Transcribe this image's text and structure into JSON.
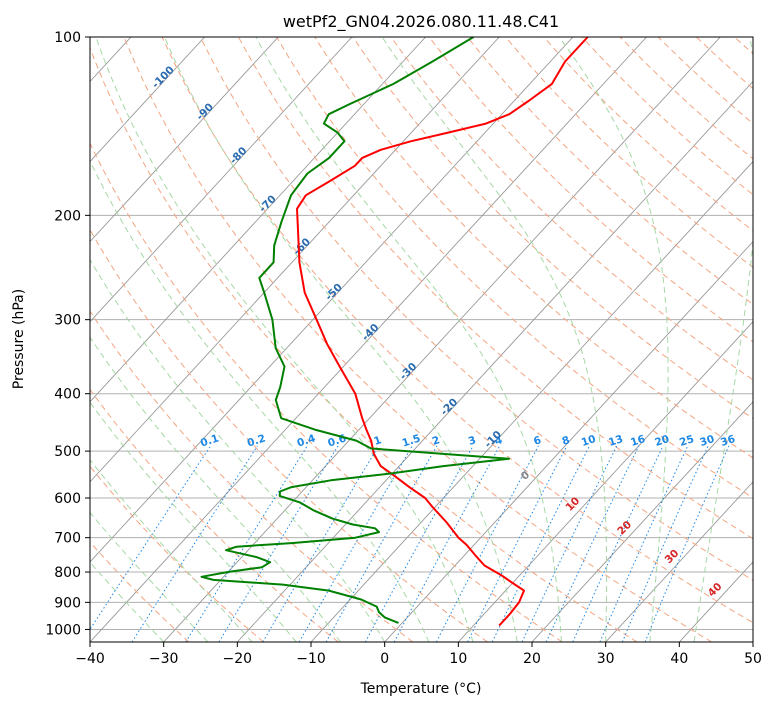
{
  "chart_data": {
    "type": "line",
    "title": "wetPf2_GN04.2026.080.11.48.C41",
    "xlabel": "Temperature (°C)",
    "ylabel": "Pressure (hPa)",
    "xlim": [
      -40,
      50
    ],
    "ylim": [
      1050,
      100
    ],
    "yscale": "log",
    "skew": true,
    "grid": true,
    "x_ticks": [
      "−40",
      "−30",
      "−20",
      "−10",
      "0",
      "10",
      "20",
      "30",
      "40",
      "50"
    ],
    "y_ticks": [
      "100",
      "200",
      "300",
      "400",
      "500",
      "600",
      "700",
      "800",
      "900",
      "1000"
    ],
    "colors": {
      "temperature": "#ff0000",
      "dewpoint": "#008000",
      "dry_adiabat": "#f4a582",
      "moist_adiabat": "#a6d8a6",
      "mixing_ratio": "#1e88e5",
      "isotherm": "#999999",
      "isotherm_label_zero": "#888888",
      "isotherm_label": "#d62728",
      "adiabat_label": "#2b6cb0"
    },
    "series": [
      {
        "color": "#ff0000",
        "points": [
          {
            "p": 985,
            "t": 13.5
          },
          {
            "p": 940,
            "t": 13.5
          },
          {
            "p": 900,
            "t": 13.3
          },
          {
            "p": 860,
            "t": 12.5
          },
          {
            "p": 835,
            "t": 10.0
          },
          {
            "p": 810,
            "t": 7.5
          },
          {
            "p": 780,
            "t": 4.0
          },
          {
            "p": 750,
            "t": 1.5
          },
          {
            "p": 720,
            "t": -1.0
          },
          {
            "p": 700,
            "t": -3.0
          },
          {
            "p": 660,
            "t": -6.5
          },
          {
            "p": 620,
            "t": -10.5
          },
          {
            "p": 600,
            "t": -12.5
          },
          {
            "p": 575,
            "t": -16.0
          },
          {
            "p": 550,
            "t": -19.5
          },
          {
            "p": 530,
            "t": -22.5
          },
          {
            "p": 505,
            "t": -25.0
          },
          {
            "p": 480,
            "t": -27.0
          },
          {
            "p": 460,
            "t": -29.0
          },
          {
            "p": 440,
            "t": -31.0
          },
          {
            "p": 400,
            "t": -35.0
          },
          {
            "p": 360,
            "t": -40.5
          },
          {
            "p": 330,
            "t": -45.0
          },
          {
            "p": 300,
            "t": -49.5
          },
          {
            "p": 270,
            "t": -54.5
          },
          {
            "p": 240,
            "t": -59.0
          },
          {
            "p": 210,
            "t": -63.5
          },
          {
            "p": 195,
            "t": -66.0
          },
          {
            "p": 185,
            "t": -66.5
          },
          {
            "p": 175,
            "t": -65.0
          },
          {
            "p": 165,
            "t": -63.5
          },
          {
            "p": 160,
            "t": -63.5
          },
          {
            "p": 155,
            "t": -62.0
          },
          {
            "p": 150,
            "t": -59.0
          },
          {
            "p": 145,
            "t": -55.0
          },
          {
            "p": 140,
            "t": -51.0
          },
          {
            "p": 135,
            "t": -49.0
          },
          {
            "p": 128,
            "t": -48.0
          },
          {
            "p": 120,
            "t": -47.0
          },
          {
            "p": 115,
            "t": -47.5
          },
          {
            "p": 110,
            "t": -48.0
          },
          {
            "p": 100,
            "t": -48.0
          }
        ]
      },
      {
        "color": "#008000",
        "points": [
          {
            "p": 975,
            "t": -0.5
          },
          {
            "p": 955,
            "t": -3.0
          },
          {
            "p": 935,
            "t": -4.5
          },
          {
            "p": 915,
            "t": -5.5
          },
          {
            "p": 890,
            "t": -8.5
          },
          {
            "p": 860,
            "t": -14.0
          },
          {
            "p": 840,
            "t": -21.0
          },
          {
            "p": 825,
            "t": -31.0
          },
          {
            "p": 815,
            "t": -33.0
          },
          {
            "p": 800,
            "t": -30.0
          },
          {
            "p": 785,
            "t": -26.0
          },
          {
            "p": 770,
            "t": -25.5
          },
          {
            "p": 755,
            "t": -28.0
          },
          {
            "p": 735,
            "t": -33.0
          },
          {
            "p": 725,
            "t": -32.0
          },
          {
            "p": 715,
            "t": -25.0
          },
          {
            "p": 700,
            "t": -17.0
          },
          {
            "p": 685,
            "t": -14.5
          },
          {
            "p": 675,
            "t": -15.5
          },
          {
            "p": 665,
            "t": -19.0
          },
          {
            "p": 650,
            "t": -22.5
          },
          {
            "p": 630,
            "t": -26.0
          },
          {
            "p": 610,
            "t": -29.0
          },
          {
            "p": 595,
            "t": -32.5
          },
          {
            "p": 585,
            "t": -33.0
          },
          {
            "p": 575,
            "t": -32.0
          },
          {
            "p": 560,
            "t": -27.5
          },
          {
            "p": 545,
            "t": -20.0
          },
          {
            "p": 530,
            "t": -14.0
          },
          {
            "p": 515,
            "t": -6.0
          },
          {
            "p": 495,
            "t": -26.0
          },
          {
            "p": 480,
            "t": -29.0
          },
          {
            "p": 460,
            "t": -36.0
          },
          {
            "p": 440,
            "t": -42.0
          },
          {
            "p": 410,
            "t": -45.0
          },
          {
            "p": 390,
            "t": -46.0
          },
          {
            "p": 360,
            "t": -48.0
          },
          {
            "p": 335,
            "t": -51.5
          },
          {
            "p": 300,
            "t": -55.5
          },
          {
            "p": 270,
            "t": -60.0
          },
          {
            "p": 255,
            "t": -62.5
          },
          {
            "p": 240,
            "t": -62.5
          },
          {
            "p": 225,
            "t": -64.5
          },
          {
            "p": 205,
            "t": -66.5
          },
          {
            "p": 185,
            "t": -68.5
          },
          {
            "p": 170,
            "t": -69.0
          },
          {
            "p": 160,
            "t": -68.0
          },
          {
            "p": 150,
            "t": -68.0
          },
          {
            "p": 145,
            "t": -70.0
          },
          {
            "p": 140,
            "t": -73.0
          },
          {
            "p": 135,
            "t": -73.5
          },
          {
            "p": 130,
            "t": -72.0
          },
          {
            "p": 120,
            "t": -68.5
          },
          {
            "p": 110,
            "t": -66.0
          },
          {
            "p": 100,
            "t": -63.5
          }
        ]
      }
    ],
    "isotherm_labels": [
      {
        "text": "0",
        "t": 0,
        "p": 555
      },
      {
        "text": "10",
        "t": 10,
        "p": 620
      },
      {
        "text": "20",
        "t": 20,
        "p": 680
      },
      {
        "text": "30",
        "t": 30,
        "p": 760
      },
      {
        "text": "40",
        "t": 40,
        "p": 865
      }
    ],
    "dry_adiabat_labels": [
      {
        "text": "-100",
        "t": -100,
        "p": 118
      },
      {
        "text": "-90",
        "t": -90,
        "p": 135
      },
      {
        "text": "-80",
        "t": -80,
        "p": 160
      },
      {
        "text": "-70",
        "t": -70,
        "p": 193
      },
      {
        "text": "-60",
        "t": -60,
        "p": 228
      },
      {
        "text": "-50",
        "t": -50,
        "p": 272
      },
      {
        "text": "-40",
        "t": -40,
        "p": 318
      },
      {
        "text": "-30",
        "t": -30,
        "p": 370
      },
      {
        "text": "-20",
        "t": -20,
        "p": 425
      },
      {
        "text": "-10",
        "t": -10,
        "p": 482
      }
    ],
    "mixing_ratio_labels": [
      "0.1",
      "0.2",
      "0.4",
      "0.6",
      "1",
      "1.5",
      "2",
      "3",
      "4",
      "6",
      "8",
      "10",
      "13",
      "16",
      "20",
      "25",
      "30",
      "36"
    ],
    "mixing_ratio_values": [
      0.1,
      0.2,
      0.4,
      0.6,
      1,
      1.5,
      2,
      3,
      4,
      6,
      8,
      10,
      13,
      16,
      20,
      25,
      30,
      36
    ],
    "mixing_ratio_label_p": 490
  }
}
